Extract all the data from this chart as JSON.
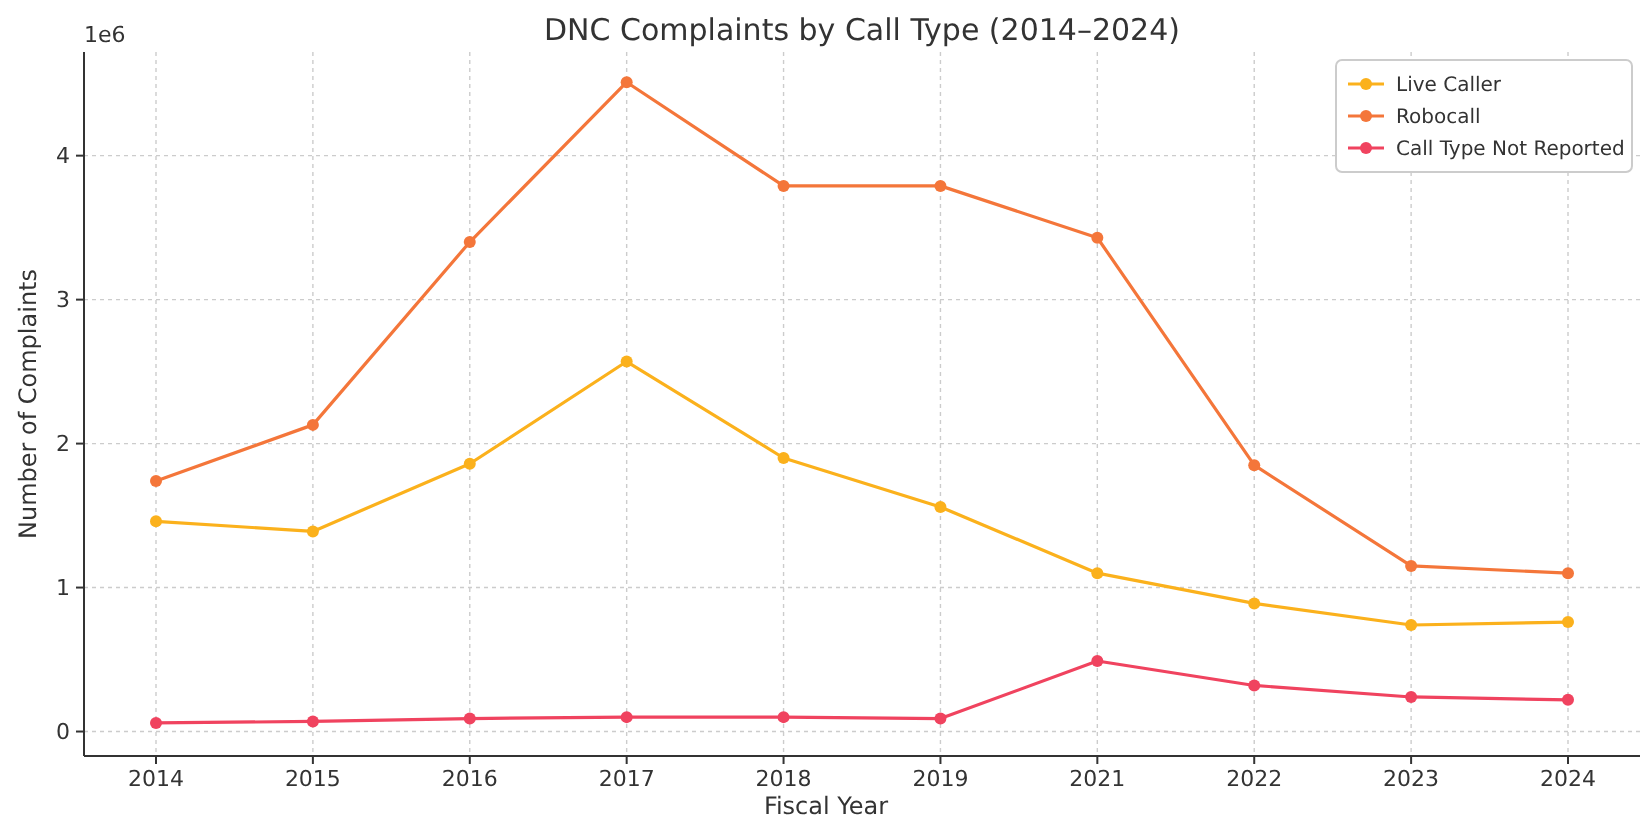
{
  "chart_data": {
    "type": "line",
    "title": "DNC Complaints by Call Type (2014–2024)",
    "xlabel": "Fiscal Year",
    "ylabel": "Number of Complaints",
    "annotations": [
      "1e6"
    ],
    "categories": [
      "2014",
      "2015",
      "2016",
      "2017",
      "2018",
      "2019",
      "2021",
      "2022",
      "2023",
      "2024"
    ],
    "series": [
      {
        "name": "Live Caller",
        "color": "#fbb11c",
        "values": [
          1.46,
          1.39,
          1.86,
          2.57,
          1.9,
          1.56,
          1.1,
          0.89,
          0.74,
          0.76
        ]
      },
      {
        "name": "Robocall",
        "color": "#f4763a",
        "values": [
          1.74,
          2.13,
          3.4,
          4.51,
          3.79,
          3.79,
          3.43,
          1.85,
          1.15,
          1.1
        ]
      },
      {
        "name": "Call Type Not Reported",
        "color": "#f0435f",
        "values": [
          0.06,
          0.07,
          0.09,
          0.1,
          0.1,
          0.09,
          0.49,
          0.32,
          0.24,
          0.22
        ]
      }
    ],
    "ylim": [
      -0.17,
      4.72
    ],
    "yticks": [
      0,
      1,
      2,
      3,
      4
    ],
    "grid": true,
    "legend": "top right",
    "marker": "circle",
    "line_style": "solid"
  }
}
